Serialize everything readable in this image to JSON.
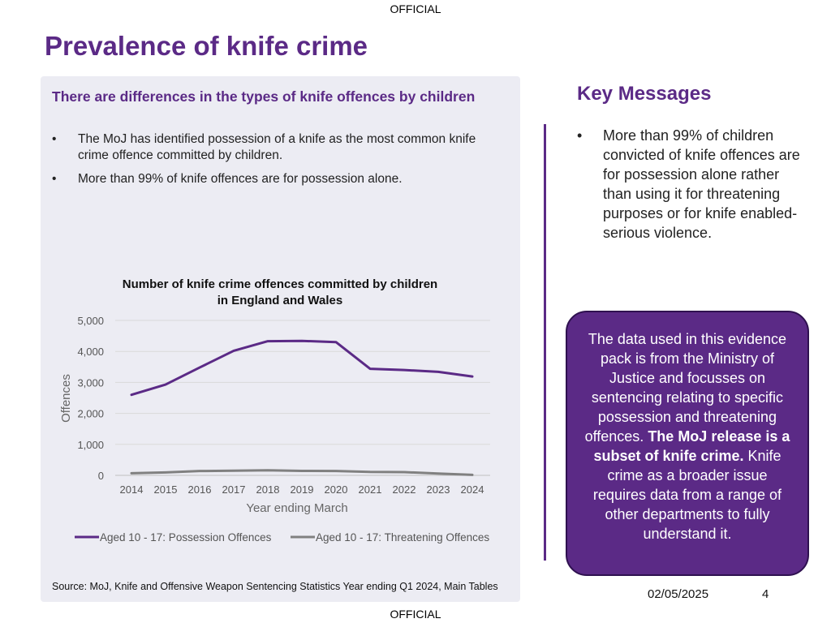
{
  "classification": "OFFICIAL",
  "title": "Prevalence of knife crime",
  "panel": {
    "heading": "There are differences in the types of knife offences by children",
    "bullets": [
      "The MoJ has identified possession of a knife as the most common knife crime offence committed by children.",
      "More than 99% of knife offences are for possession alone."
    ],
    "source": "Source: MoJ, Knife and Offensive Weapon Sentencing Statistics Year ending Q1 2024, Main Tables"
  },
  "bullet_glyph": "•",
  "key_messages": {
    "title": "Key Messages",
    "items": [
      "More than 99% of children convicted of knife offences are for possession alone rather than using it for threatening purposes or for knife enabled-serious violence."
    ]
  },
  "callout": {
    "text_before": "The data used in this evidence pack is from the Ministry of Justice and focusses on sentencing relating to specific possession and threatening offences. ",
    "text_bold": "The MoJ release is a subset of knife crime.",
    "text_after": " Knife crime as a broader issue requires data from a range of other departments to fully understand it."
  },
  "footer": {
    "date": "02/05/2025",
    "page": "4"
  },
  "chart_data": {
    "type": "line",
    "title_line1": "Number of knife crime offences committed by children",
    "title_line2": "in England and Wales",
    "xlabel": "Year ending March",
    "ylabel": "Offences",
    "categories": [
      "2014",
      "2015",
      "2016",
      "2017",
      "2018",
      "2019",
      "2020",
      "2021",
      "2022",
      "2023",
      "2024"
    ],
    "ylim": [
      0,
      5000
    ],
    "yticks": [
      0,
      1000,
      2000,
      3000,
      4000,
      5000
    ],
    "ytick_labels": [
      "0",
      "1,000",
      "2,000",
      "3,000",
      "4,000",
      "5,000"
    ],
    "grid": true,
    "legend_position": "bottom",
    "series": [
      {
        "name": "Aged 10 - 17: Possession Offences",
        "color": "#5b2a86",
        "values": [
          2600,
          2930,
          3480,
          4020,
          4330,
          4340,
          4300,
          3440,
          3400,
          3340,
          3190
        ]
      },
      {
        "name": "Aged 10 - 17: Threatening Offences",
        "color": "#808080",
        "values": [
          70,
          95,
          140,
          150,
          165,
          145,
          140,
          110,
          105,
          60,
          15
        ]
      }
    ]
  }
}
